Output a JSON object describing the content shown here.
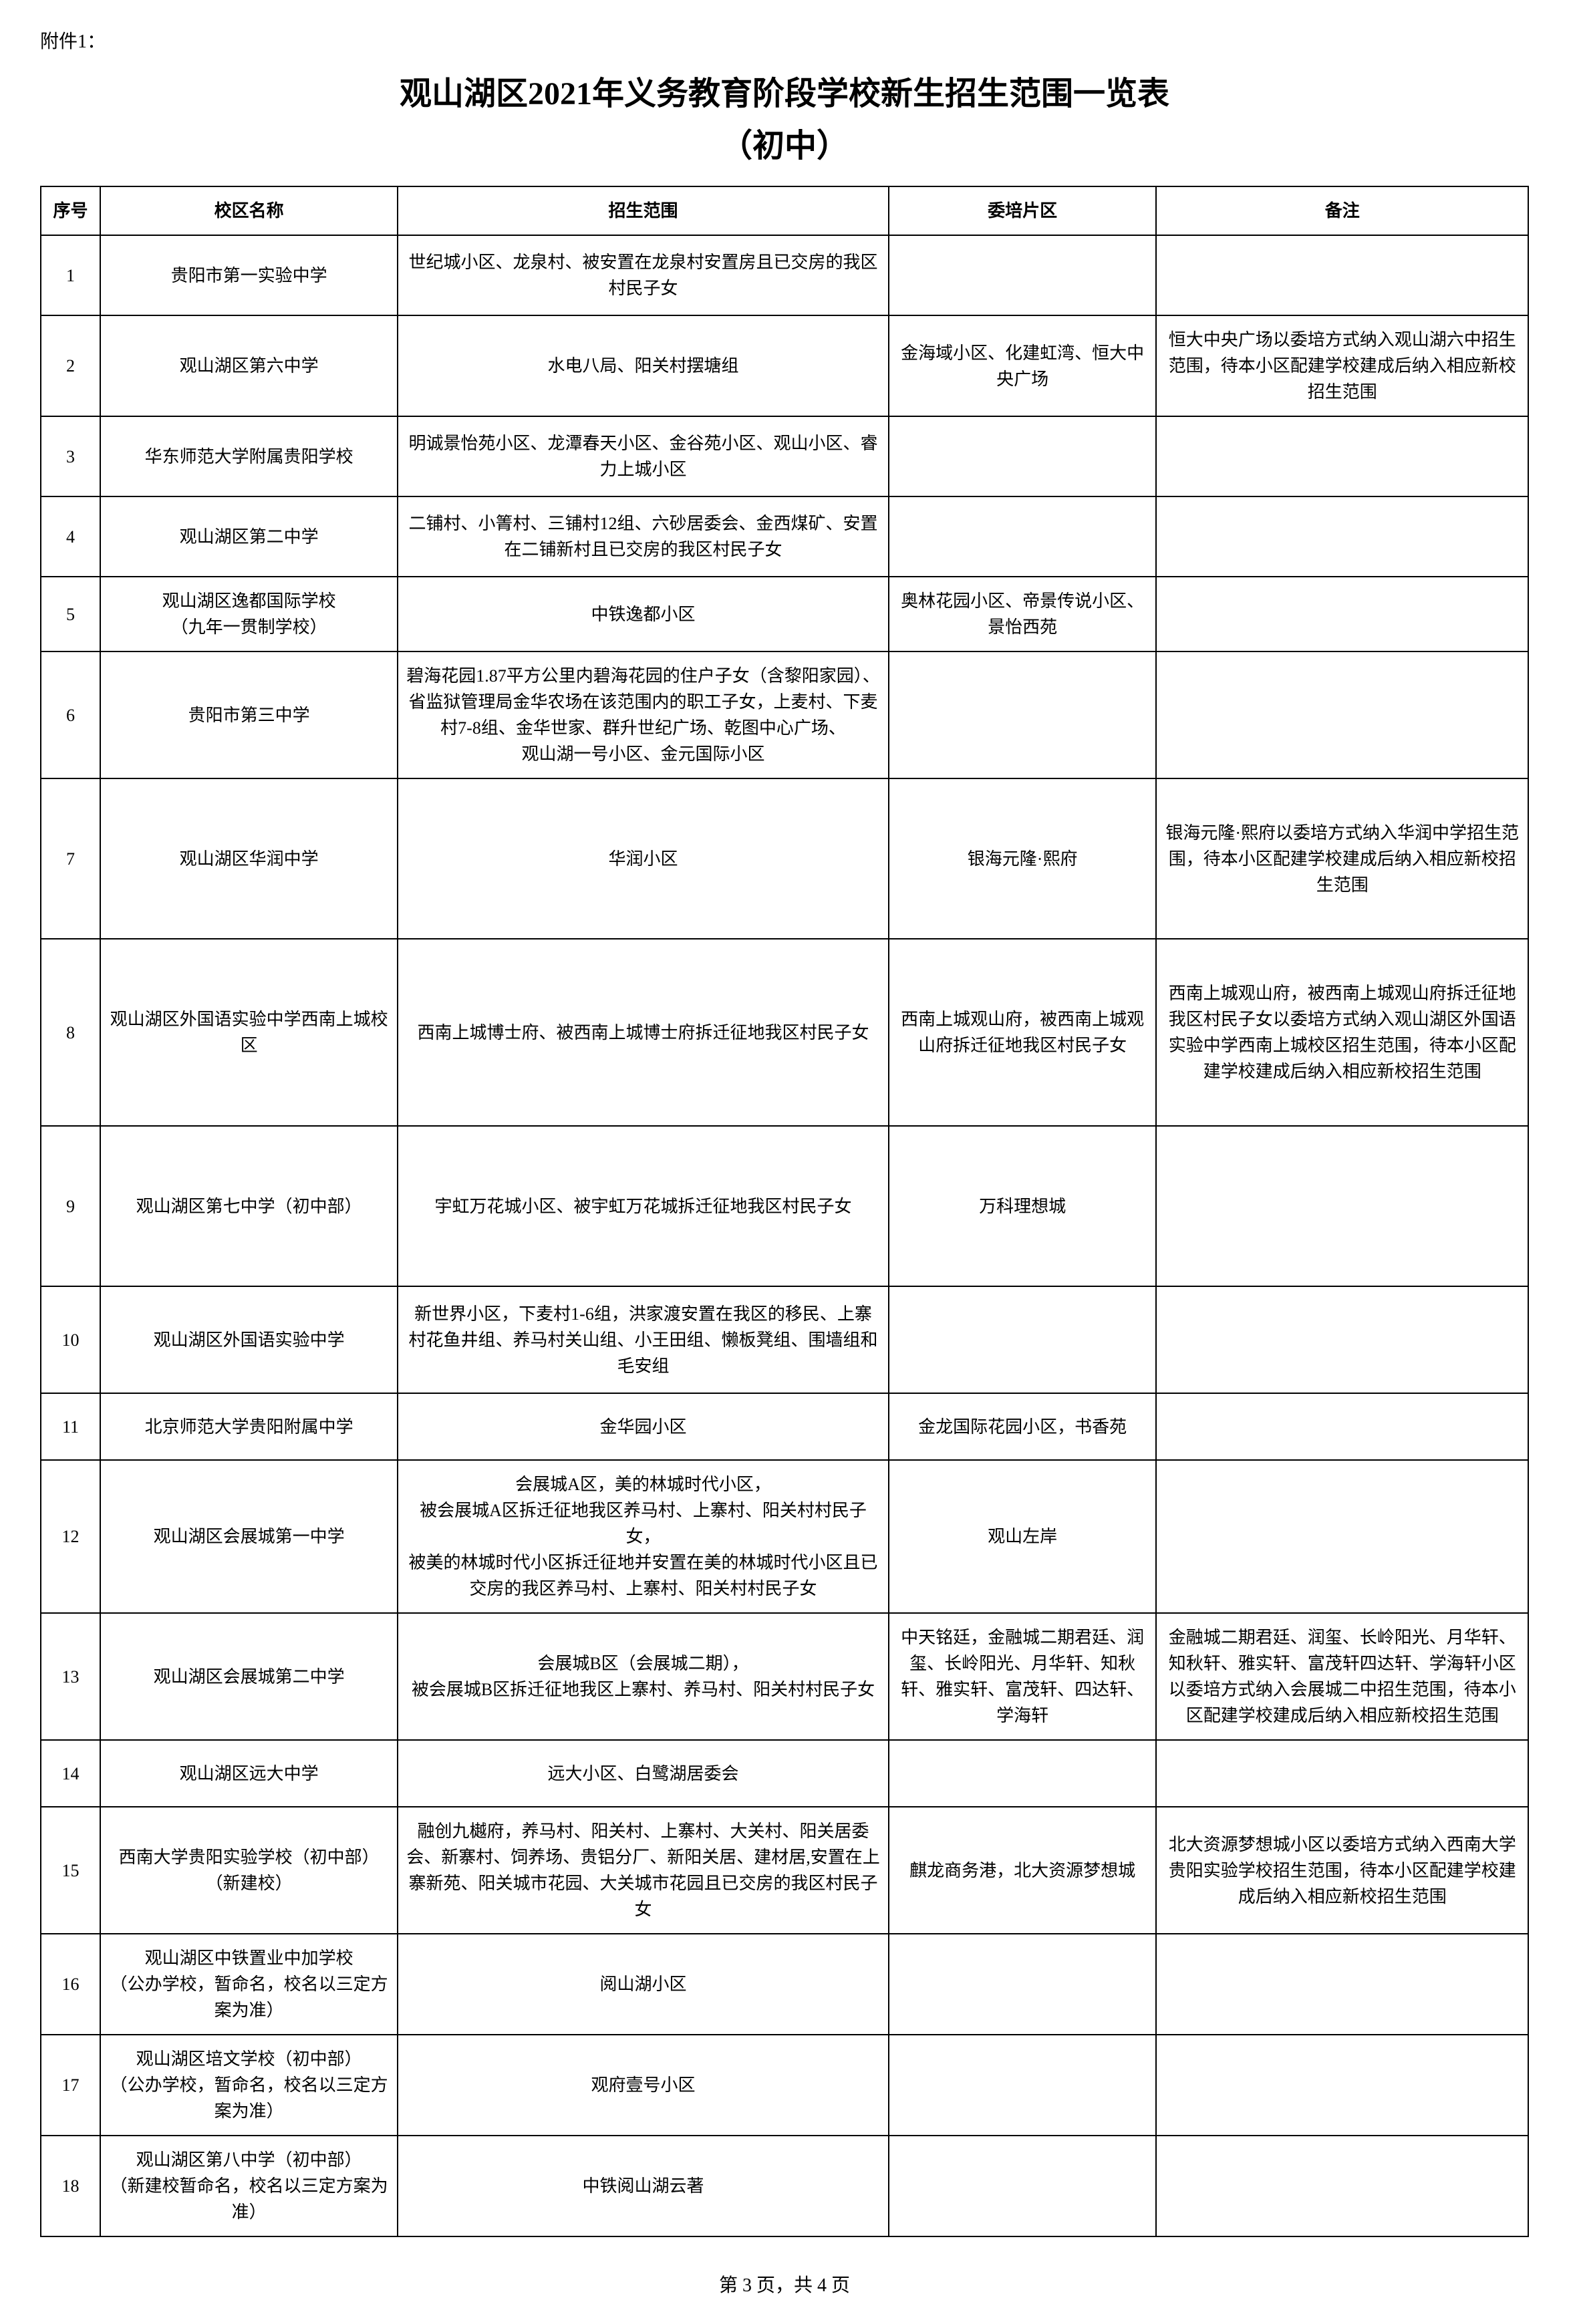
{
  "attachment_label": "附件1：",
  "title": "观山湖区2021年义务教育阶段学校新生招生范围一览表",
  "subtitle": "（初中）",
  "footer": "第 3 页，共 4 页",
  "columns": {
    "seq": "序号",
    "school": "校区名称",
    "scope": "招生范围",
    "delegate": "委培片区",
    "remark": "备注"
  },
  "rows": [
    {
      "seq": "1",
      "school": "贵阳市第一实验中学",
      "scope": "世纪城小区、龙泉村、被安置在龙泉村安置房且已交房的我区村民子女",
      "delegate": "",
      "remark": ""
    },
    {
      "seq": "2",
      "school": "观山湖区第六中学",
      "scope": "水电八局、阳关村摆塘组",
      "delegate": "金海域小区、化建虹湾、恒大中央广场",
      "remark": "恒大中央广场以委培方式纳入观山湖六中招生范围，待本小区配建学校建成后纳入相应新校招生范围"
    },
    {
      "seq": "3",
      "school": "华东师范大学附属贵阳学校",
      "scope": "明诚景怡苑小区、龙潭春天小区、金谷苑小区、观山小区、睿力上城小区",
      "delegate": "",
      "remark": ""
    },
    {
      "seq": "4",
      "school": "观山湖区第二中学",
      "scope": "二铺村、小箐村、三铺村12组、六砂居委会、金西煤矿、安置在二铺新村且已交房的我区村民子女",
      "delegate": "",
      "remark": ""
    },
    {
      "seq": "5",
      "school": "观山湖区逸都国际学校\n（九年一贯制学校）",
      "scope": "中铁逸都小区",
      "delegate": "奥林花园小区、帝景传说小区、景怡西苑",
      "remark": ""
    },
    {
      "seq": "6",
      "school": "贵阳市第三中学",
      "scope": "碧海花园1.87平方公里内碧海花园的住户子女（含黎阳家园）、省监狱管理局金华农场在该范围内的职工子女，上麦村、下麦村7-8组、金华世家、群升世纪广场、乾图中心广场、\n观山湖一号小区、金元国际小区",
      "delegate": "",
      "remark": ""
    },
    {
      "seq": "7",
      "school": "观山湖区华润中学",
      "scope": "华润小区",
      "delegate": "银海元隆·熙府",
      "remark": "银海元隆·熙府以委培方式纳入华润中学招生范围，待本小区配建学校建成后纳入相应新校招生范围"
    },
    {
      "seq": "8",
      "school": "观山湖区外国语实验中学西南上城校区",
      "scope": "西南上城博士府、被西南上城博士府拆迁征地我区村民子女",
      "delegate": "西南上城观山府，被西南上城观山府拆迁征地我区村民子女",
      "remark": "西南上城观山府，被西南上城观山府拆迁征地我区村民子女以委培方式纳入观山湖区外国语实验中学西南上城校区招生范围，待本小区配建学校建成后纳入相应新校招生范围"
    },
    {
      "seq": "9",
      "school": "观山湖区第七中学（初中部）",
      "scope": "宇虹万花城小区、被宇虹万花城拆迁征地我区村民子女",
      "delegate": "万科理想城",
      "remark": ""
    },
    {
      "seq": "10",
      "school": "观山湖区外国语实验中学",
      "scope": "新世界小区，下麦村1-6组，洪家渡安置在我区的移民、上寨村花鱼井组、养马村关山组、小王田组、懒板凳组、围墙组和毛安组",
      "delegate": "",
      "remark": ""
    },
    {
      "seq": "11",
      "school": "北京师范大学贵阳附属中学",
      "scope": "金华园小区",
      "delegate": "金龙国际花园小区，书香苑",
      "remark": ""
    },
    {
      "seq": "12",
      "school": "观山湖区会展城第一中学",
      "scope": "会展城A区，美的林城时代小区，\n被会展城A区拆迁征地我区养马村、上寨村、阳关村村民子女，\n被美的林城时代小区拆迁征地并安置在美的林城时代小区且已交房的我区养马村、上寨村、阳关村村民子女",
      "delegate": "观山左岸",
      "remark": ""
    },
    {
      "seq": "13",
      "school": "观山湖区会展城第二中学",
      "scope": "会展城B区（会展城二期），\n被会展城B区拆迁征地我区上寨村、养马村、阳关村村民子女",
      "delegate": "中天铭廷，金融城二期君廷、润玺、长岭阳光、月华轩、知秋轩、雅实轩、富茂轩、四达轩、学海轩",
      "remark": "金融城二期君廷、润玺、长岭阳光、月华轩、知秋轩、雅实轩、富茂轩四达轩、学海轩小区以委培方式纳入会展城二中招生范围，待本小区配建学校建成后纳入相应新校招生范围"
    },
    {
      "seq": "14",
      "school": "观山湖区远大中学",
      "scope": "远大小区、白鹭湖居委会",
      "delegate": "",
      "remark": ""
    },
    {
      "seq": "15",
      "school": "西南大学贵阳实验学校（初中部）（新建校）",
      "scope": "融创九樾府，养马村、阳关村、上寨村、大关村、阳关居委会、新寨村、饲养场、贵铝分厂、新阳关居、建材居,安置在上寨新苑、阳关城市花园、大关城市花园且已交房的我区村民子女",
      "delegate": "麒龙商务港，北大资源梦想城",
      "remark": "北大资源梦想城小区以委培方式纳入西南大学贵阳实验学校招生范围，待本小区配建学校建成后纳入相应新校招生范围"
    },
    {
      "seq": "16",
      "school": "观山湖区中铁置业中加学校\n（公办学校，暂命名，校名以三定方案为准）",
      "scope": "阅山湖小区",
      "delegate": "",
      "remark": ""
    },
    {
      "seq": "17",
      "school": "观山湖区培文学校（初中部）\n（公办学校，暂命名，校名以三定方案为准）",
      "scope": "观府壹号小区",
      "delegate": "",
      "remark": ""
    },
    {
      "seq": "18",
      "school": "观山湖区第八中学（初中部）\n（新建校暂命名，校名以三定方案为准）",
      "scope": "中铁阅山湖云著",
      "delegate": "",
      "remark": ""
    }
  ],
  "row_heights": [
    "normal",
    "normal",
    "normal",
    "normal",
    "short",
    "medium",
    "tall",
    "xtall",
    "tall",
    "medium",
    "short",
    "medium",
    "medium",
    "short",
    "medium",
    "normal",
    "normal",
    "normal"
  ]
}
